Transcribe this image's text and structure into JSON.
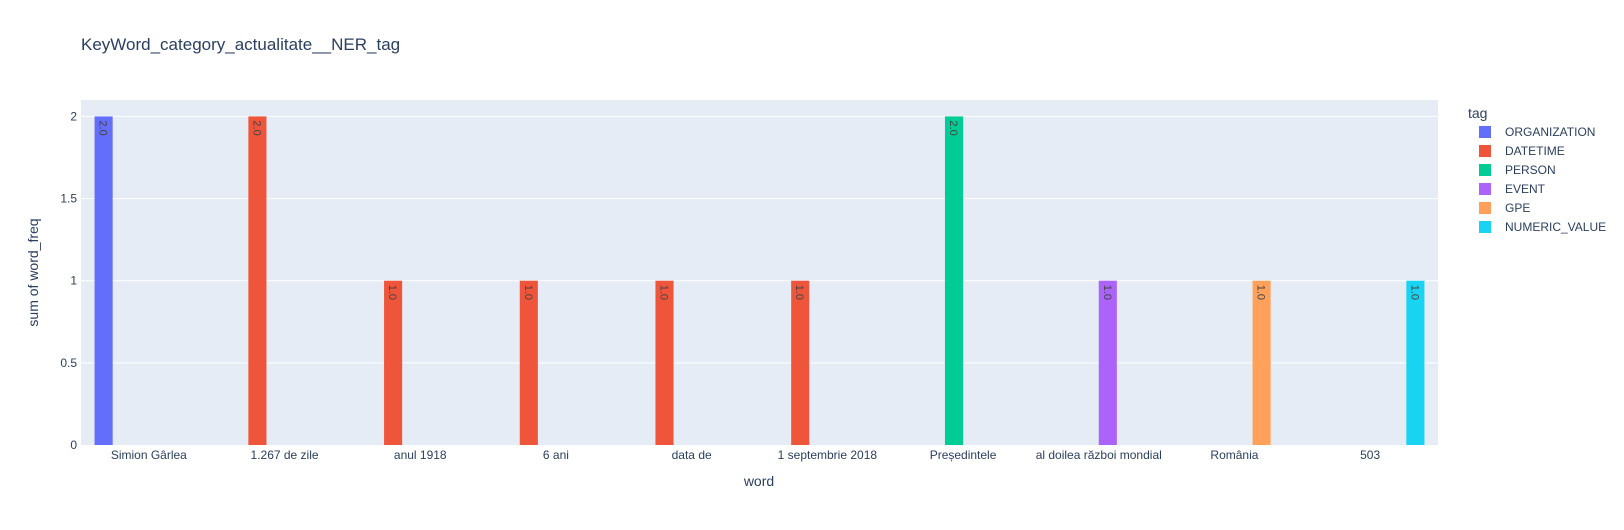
{
  "chart_data": {
    "type": "bar",
    "title": "KeyWord_category_actualitate__NER_tag",
    "xlabel": "word",
    "ylabel": "sum of word_freq",
    "ylim": [
      0,
      2.1
    ],
    "yticks": [
      0,
      0.5,
      1,
      1.5,
      2
    ],
    "ytick_labels": [
      "0",
      "0.5",
      "1",
      "1.5",
      "2"
    ],
    "categories": [
      "Simion Gârlea",
      "1.267 de zile",
      "anul 1918",
      "6 ani",
      "data de",
      "1 septembrie 2018",
      "Președintele",
      "al doilea război mondial",
      "România",
      "503"
    ],
    "legend_title": "tag",
    "legend_position": "right",
    "grid": true,
    "series": [
      {
        "name": "ORGANIZATION",
        "color": "#636efa",
        "values": [
          2,
          null,
          null,
          null,
          null,
          null,
          null,
          null,
          null,
          null
        ],
        "labels": [
          "2.0",
          "",
          "",
          "",
          "",
          "",
          "",
          "",
          "",
          ""
        ]
      },
      {
        "name": "DATETIME",
        "color": "#EF553B",
        "values": [
          null,
          2,
          1,
          1,
          1,
          1,
          null,
          null,
          null,
          null
        ],
        "labels": [
          "",
          "2.0",
          "1.0",
          "1.0",
          "1.0",
          "1.0",
          "",
          "",
          "",
          ""
        ]
      },
      {
        "name": "PERSON",
        "color": "#00cc96",
        "values": [
          null,
          null,
          null,
          null,
          null,
          null,
          2,
          null,
          null,
          null
        ],
        "labels": [
          "",
          "",
          "",
          "",
          "",
          "",
          "2.0",
          "",
          "",
          ""
        ]
      },
      {
        "name": "EVENT",
        "color": "#ab63fa",
        "values": [
          null,
          null,
          null,
          null,
          null,
          null,
          null,
          1,
          null,
          null
        ],
        "labels": [
          "",
          "",
          "",
          "",
          "",
          "",
          "",
          "1.0",
          "",
          ""
        ]
      },
      {
        "name": "GPE",
        "color": "#FFA15A",
        "values": [
          null,
          null,
          null,
          null,
          null,
          null,
          null,
          null,
          1,
          null
        ],
        "labels": [
          "",
          "",
          "",
          "",
          "",
          "",
          "",
          "",
          "1.0",
          ""
        ]
      },
      {
        "name": "NUMERIC_VALUE",
        "color": "#19d3f3",
        "values": [
          null,
          null,
          null,
          null,
          null,
          null,
          null,
          null,
          null,
          1
        ],
        "labels": [
          "",
          "",
          "",
          "",
          "",
          "",
          "",
          "",
          "",
          "1.0"
        ]
      }
    ]
  }
}
